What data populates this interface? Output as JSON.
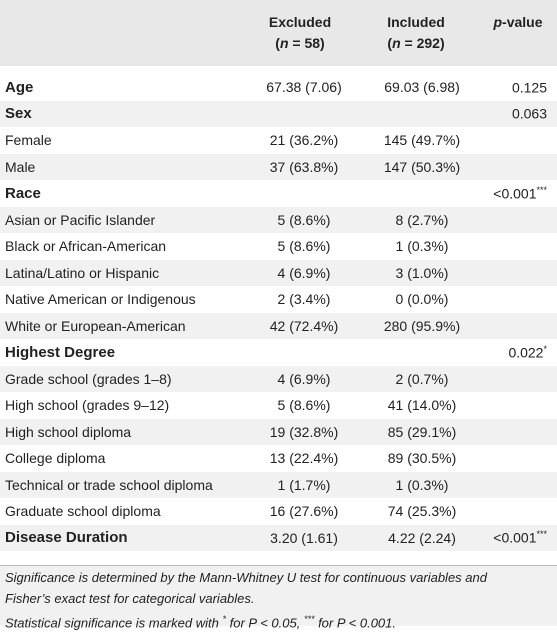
{
  "header": {
    "excluded_label": "Excluded",
    "excluded_n_prefix": "(",
    "excluded_n_var": "n",
    "excluded_n_value": " = 58)",
    "included_label": "Included",
    "included_n_prefix": "(",
    "included_n_var": "n",
    "included_n_value": " = 292)",
    "p_italic": "p",
    "p_suffix": "-value"
  },
  "rows": [
    {
      "label": "Age",
      "bold": true,
      "excluded": "67.38 (7.06)",
      "included": "69.03 (6.98)",
      "p": "0.125",
      "sig": ""
    },
    {
      "label": "Sex",
      "bold": true,
      "excluded": "",
      "included": "",
      "p": "0.063",
      "sig": ""
    },
    {
      "label": "Female",
      "bold": false,
      "excluded": "21 (36.2%)",
      "included": "145 (49.7%)",
      "p": "",
      "sig": ""
    },
    {
      "label": "Male",
      "bold": false,
      "excluded": "37 (63.8%)",
      "included": "147 (50.3%)",
      "p": "",
      "sig": ""
    },
    {
      "label": "Race",
      "bold": true,
      "excluded": "",
      "included": "",
      "p": "<0.001",
      "sig": "***"
    },
    {
      "label": "Asian or Pacific Islander",
      "bold": false,
      "excluded": "5 (8.6%)",
      "included": "8 (2.7%)",
      "p": "",
      "sig": ""
    },
    {
      "label": "Black or African-American",
      "bold": false,
      "excluded": "5 (8.6%)",
      "included": "1 (0.3%)",
      "p": "",
      "sig": ""
    },
    {
      "label": "Latina/Latino or Hispanic",
      "bold": false,
      "excluded": "4 (6.9%)",
      "included": "3 (1.0%)",
      "p": "",
      "sig": ""
    },
    {
      "label": "Native American or Indigenous",
      "bold": false,
      "excluded": "2 (3.4%)",
      "included": "0 (0.0%)",
      "p": "",
      "sig": ""
    },
    {
      "label": "White or European-American",
      "bold": false,
      "excluded": "42 (72.4%)",
      "included": "280 (95.9%)",
      "p": "",
      "sig": ""
    },
    {
      "label": "Highest Degree",
      "bold": true,
      "excluded": "",
      "included": "",
      "p": "0.022",
      "sig": "*"
    },
    {
      "label": "Grade school (grades 1–8)",
      "bold": false,
      "excluded": "4 (6.9%)",
      "included": "2 (0.7%)",
      "p": "",
      "sig": ""
    },
    {
      "label": "High school (grades 9–12)",
      "bold": false,
      "excluded": "5 (8.6%)",
      "included": "41 (14.0%)",
      "p": "",
      "sig": ""
    },
    {
      "label": "High school diploma",
      "bold": false,
      "excluded": "19 (32.8%)",
      "included": "85 (29.1%)",
      "p": "",
      "sig": ""
    },
    {
      "label": "College diploma",
      "bold": false,
      "excluded": "13 (22.4%)",
      "included": "89 (30.5%)",
      "p": "",
      "sig": ""
    },
    {
      "label": "Technical or trade school diploma",
      "bold": false,
      "excluded": "1 (1.7%)",
      "included": "1 (0.3%)",
      "p": "",
      "sig": ""
    },
    {
      "label": "Graduate school diploma",
      "bold": false,
      "excluded": "16 (27.6%)",
      "included": "74 (25.3%)",
      "p": "",
      "sig": ""
    },
    {
      "label": "Disease Duration",
      "bold": true,
      "excluded": "3.20 (1.61)",
      "included": "4.22 (2.24)",
      "p": "<0.001",
      "sig": "***"
    }
  ],
  "footnote": {
    "line1": "Significance is determined by the Mann-Whitney U test for continuous variables and",
    "line2": "Fisher’s exact test for categorical variables.",
    "line3_a": "Statistical significance is marked with ",
    "line3_sup1": "*",
    "line3_b": " for P < 0.05, ",
    "line3_sup2": "***",
    "line3_c": " for P < 0.001."
  }
}
